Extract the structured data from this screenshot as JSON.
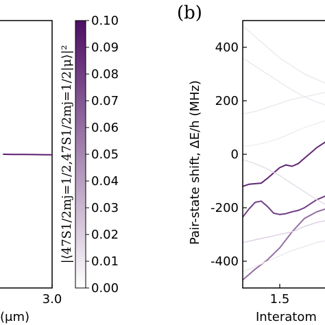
{
  "chart_data": [
    {
      "panel": "a",
      "type": "line",
      "xlabel": "(μm)",
      "xticks": [
        "3.0"
      ],
      "x": [
        2.0,
        2.2,
        2.4,
        2.6,
        2.8,
        3.0
      ],
      "y": [
        0.08,
        0.07,
        0.06,
        0.05,
        0.04,
        0.03
      ],
      "line_color": "#5b1a6e"
    },
    {
      "panel": "colorbar",
      "type": "heatmap",
      "ylabel": "|⟨47S1/2mj=1/2,47S1/2mj=1/2|μ⟩|²",
      "range": [
        0.0,
        0.1
      ],
      "ticks": [
        "0.00",
        "0.01",
        "0.02",
        "0.03",
        "0.04",
        "0.05",
        "0.06",
        "0.07",
        "0.08",
        "0.09",
        "0.10"
      ],
      "color_low": "#ffffff",
      "color_high": "#4d0e63"
    },
    {
      "panel": "b",
      "type": "line",
      "panel_label": "(b)",
      "ylabel": "Pair-state shift, ΔE/h (MHz)",
      "xlabel": "Interatom",
      "ylim": [
        -500,
        500
      ],
      "yticks": [
        "400",
        "200",
        "0",
        "-200",
        "-400"
      ],
      "xticks": [
        "1.5"
      ],
      "xlim": [
        1.2,
        1.9
      ],
      "series": [
        {
          "x": [
            1.2,
            1.25,
            1.3,
            1.35,
            1.4,
            1.45,
            1.5,
            1.55,
            1.6,
            1.65,
            1.7,
            1.75,
            1.8,
            1.85,
            1.9
          ],
          "y": [
            -120,
            -112,
            -110,
            -108,
            -90,
            -70,
            -50,
            -40,
            -45,
            -35,
            -15,
            5,
            25,
            40,
            55
          ],
          "strength": 0.09
        },
        {
          "x": [
            1.2,
            1.25,
            1.3,
            1.35,
            1.4,
            1.45,
            1.5,
            1.55,
            1.6,
            1.65,
            1.7,
            1.75,
            1.8,
            1.85,
            1.9
          ],
          "y": [
            -235,
            -205,
            -180,
            -175,
            -195,
            -220,
            -225,
            -222,
            -215,
            -210,
            -200,
            -185,
            -170,
            -160,
            -150
          ],
          "strength": 0.08
        },
        {
          "x": [
            1.2,
            1.3,
            1.4,
            1.5,
            1.6,
            1.7,
            1.8,
            1.9
          ],
          "y": [
            -470,
            -430,
            -395,
            -350,
            -290,
            -240,
            -215,
            -200
          ],
          "strength": 0.06
        },
        {
          "x": [
            1.2,
            1.3,
            1.4,
            1.5,
            1.6,
            1.7,
            1.8,
            1.9
          ],
          "y": [
            -330,
            -320,
            -310,
            -300,
            -290,
            -270,
            -255,
            -245
          ],
          "strength": 0.02
        },
        {
          "x": [
            1.2,
            1.3,
            1.4,
            1.5,
            1.6,
            1.7,
            1.8,
            1.9
          ],
          "y": [
            360,
            330,
            300,
            270,
            240,
            215,
            195,
            180
          ],
          "strength": 0.01
        },
        {
          "x": [
            1.2,
            1.3,
            1.4,
            1.5,
            1.6,
            1.7,
            1.8,
            1.9
          ],
          "y": [
            480,
            440,
            400,
            360,
            330,
            300,
            280,
            260
          ],
          "strength": 0.01
        },
        {
          "x": [
            1.2,
            1.3,
            1.4,
            1.5,
            1.6,
            1.7,
            1.8,
            1.9
          ],
          "y": [
            150,
            160,
            175,
            190,
            205,
            215,
            225,
            235
          ],
          "strength": 0.01
        },
        {
          "x": [
            1.2,
            1.3,
            1.4,
            1.5,
            1.6,
            1.7,
            1.8,
            1.9
          ],
          "y": [
            30,
            35,
            45,
            60,
            80,
            100,
            115,
            130
          ],
          "strength": 0.008
        },
        {
          "x": [
            1.2,
            1.3,
            1.4,
            1.5,
            1.6,
            1.7,
            1.8,
            1.9
          ],
          "y": [
            -20,
            -35,
            -55,
            -80,
            -110,
            -140,
            -170,
            -195
          ],
          "strength": 0.015
        },
        {
          "x": [
            1.2,
            1.3,
            1.4,
            1.5,
            1.6,
            1.7,
            1.8,
            1.9
          ],
          "y": [
            -440,
            -420,
            -400,
            -380,
            -360,
            -345,
            -330,
            -320
          ],
          "strength": 0.01
        }
      ]
    }
  ]
}
